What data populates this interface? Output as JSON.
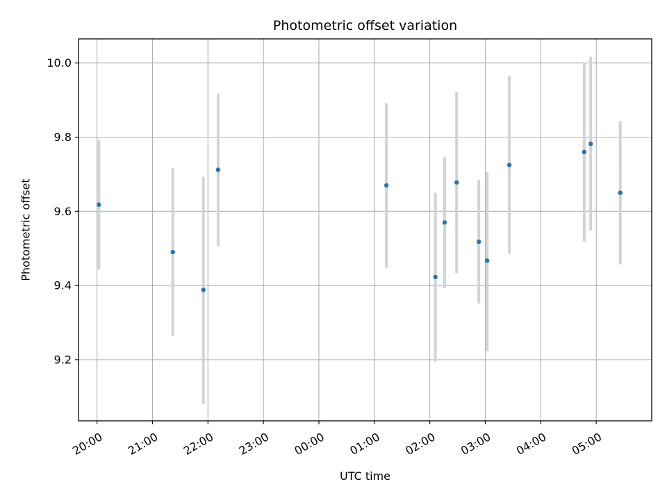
{
  "chart_data": {
    "type": "scatter",
    "title": "Photometric offset variation",
    "xlabel": "UTC time",
    "ylabel": "Photometric offset",
    "x_ticks": [
      "20:00",
      "21:00",
      "22:00",
      "23:00",
      "00:00",
      "01:00",
      "02:00",
      "03:00",
      "04:00",
      "05:00"
    ],
    "y_ticks": [
      "9.2",
      "9.4",
      "9.6",
      "9.8",
      "10.0"
    ],
    "xlim": [
      "19:40",
      "06:00"
    ],
    "ylim": [
      9.035,
      10.065
    ],
    "grid": true,
    "marker_color": "#1f77b4",
    "errorbar_color": "#d3d3d3",
    "series": [
      {
        "points": [
          {
            "t": "20:02",
            "y": 9.618,
            "lo": 9.443,
            "hi": 9.793
          },
          {
            "t": "21:22",
            "y": 9.49,
            "lo": 9.263,
            "hi": 9.717
          },
          {
            "t": "21:55",
            "y": 9.388,
            "lo": 9.08,
            "hi": 9.693
          },
          {
            "t": "22:11",
            "y": 9.712,
            "lo": 9.505,
            "hi": 9.918
          },
          {
            "t": "01:13",
            "y": 9.67,
            "lo": 9.448,
            "hi": 9.892
          },
          {
            "t": "02:06",
            "y": 9.423,
            "lo": 9.195,
            "hi": 9.65
          },
          {
            "t": "02:16",
            "y": 9.57,
            "lo": 9.393,
            "hi": 9.747
          },
          {
            "t": "02:29",
            "y": 9.678,
            "lo": 9.433,
            "hi": 9.922
          },
          {
            "t": "02:53",
            "y": 9.518,
            "lo": 9.352,
            "hi": 9.685
          },
          {
            "t": "03:02",
            "y": 9.467,
            "lo": 9.222,
            "hi": 9.707
          },
          {
            "t": "03:26",
            "y": 9.725,
            "lo": 9.485,
            "hi": 9.965
          },
          {
            "t": "04:47",
            "y": 9.76,
            "lo": 9.518,
            "hi": 10.002
          },
          {
            "t": "04:54",
            "y": 9.782,
            "lo": 9.548,
            "hi": 10.017
          },
          {
            "t": "05:26",
            "y": 9.65,
            "lo": 9.457,
            "hi": 9.843
          }
        ]
      }
    ]
  }
}
